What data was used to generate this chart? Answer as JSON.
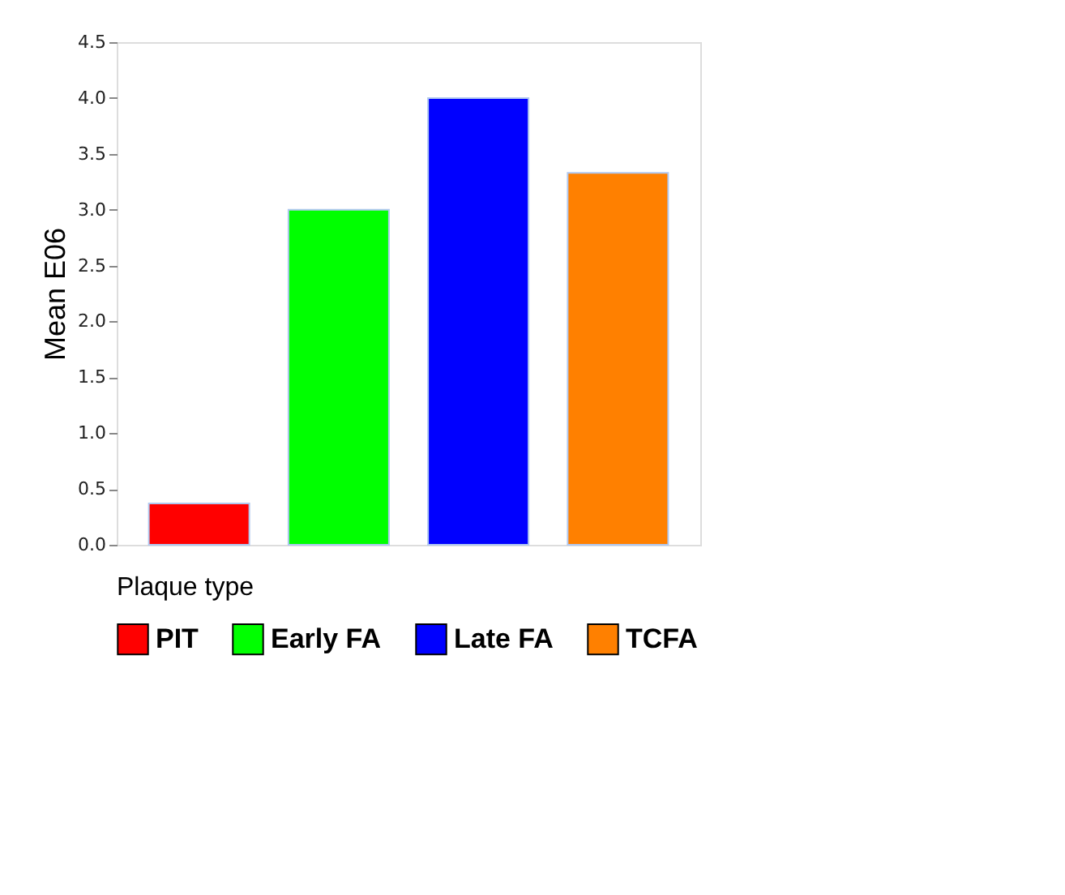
{
  "chart_data": {
    "type": "bar",
    "ylabel": "Mean E06",
    "legend_title": "Plaque type",
    "categories": [
      null,
      null,
      null,
      null
    ],
    "series": [
      {
        "name": "PIT",
        "color": "#ff0000",
        "values": [
          0.37,
          null,
          null,
          null
        ]
      },
      {
        "name": "Early FA",
        "color": "#00ff00",
        "values": [
          null,
          3.0,
          null,
          null
        ]
      },
      {
        "name": "Late FA",
        "color": "#0000ff",
        "values": [
          null,
          null,
          4.0,
          null
        ]
      },
      {
        "name": "TCFA",
        "color": "#ff8000",
        "values": [
          null,
          null,
          null,
          3.33
        ]
      }
    ],
    "ylim": [
      0,
      4.5
    ],
    "yticks": [
      {
        "value": 0,
        "label": "0.0"
      },
      0.5,
      {
        "value": 1,
        "label": "1.0"
      },
      1.5,
      {
        "value": 2,
        "label": "2.0"
      },
      2.5,
      {
        "value": 3,
        "label": "3.0"
      },
      3.5,
      {
        "value": 4,
        "label": "4.0"
      },
      4.5
    ],
    "stacked": true,
    "grid": false,
    "legend": "bottom",
    "tick_labels": "y"
  }
}
